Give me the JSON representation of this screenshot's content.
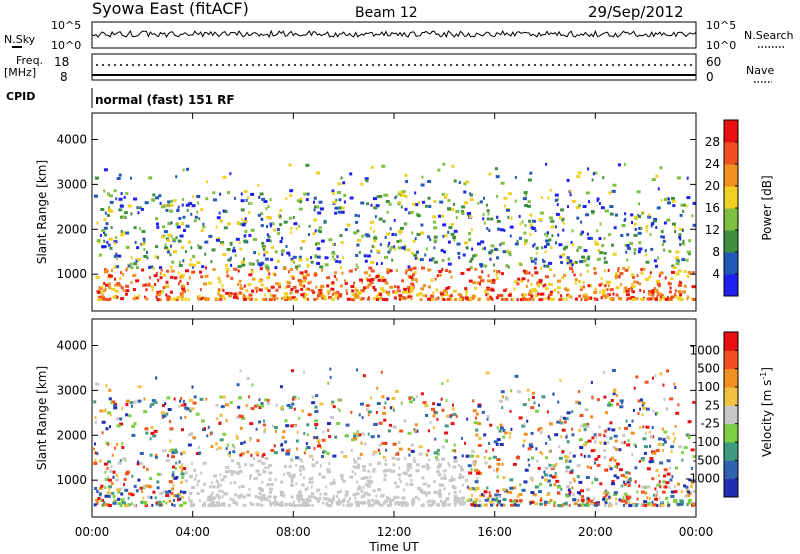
{
  "header": {
    "station": "Syowa East (fitACF)",
    "beam": "Beam 12",
    "date": "29/Sep/2012"
  },
  "top_panel": {
    "left_label": "N.Sky",
    "right_label": "N.Search",
    "ticks": [
      "10^5",
      "10^0"
    ],
    "right_ticks": [
      "10^5",
      "10^0"
    ]
  },
  "freq_panel": {
    "left_label_1": "Freq.",
    "left_label_2": "[MHz]",
    "right_label": "Nave",
    "left_ticks": [
      "18",
      "8"
    ],
    "right_ticks": [
      "60",
      "0"
    ]
  },
  "cpid_panel": {
    "label": "CPID",
    "text": "normal (fast) 151 RF"
  },
  "chart_data": [
    {
      "type": "heatmap",
      "ylabel": "Slant Range [km]",
      "ylim": [
        180,
        4590
      ],
      "y_ticks": [
        "1000",
        "2000",
        "3000",
        "4000"
      ],
      "colorbar": {
        "label": "Power [dB]",
        "ticks": [
          "4",
          "8",
          "12",
          "16",
          "20",
          "24",
          "28"
        ],
        "colors": [
          "#1f20f0",
          "#2358b8",
          "#3f8f3f",
          "#7fbf3f",
          "#f0d020",
          "#f09020",
          "#f05020",
          "#e81010"
        ]
      }
    },
    {
      "type": "heatmap",
      "ylabel": "Slant Range [km]",
      "ylim": [
        180,
        4590
      ],
      "y_ticks": [
        "1000",
        "2000",
        "3000",
        "4000"
      ],
      "colorbar": {
        "label": "Velocity [m s",
        "label_sup": "-1",
        "label_end": "]",
        "ticks": [
          "1000",
          "500",
          "100",
          "25",
          "-25",
          "-100",
          "-500",
          "-1000"
        ],
        "colors": [
          "#1f2fb0",
          "#2f62b0",
          "#3f9a80",
          "#7ad040",
          "#c8c8c8",
          "#f0c040",
          "#f09020",
          "#f05020",
          "#e81010"
        ]
      }
    }
  ],
  "x_axis": {
    "title": "Time UT",
    "ticks": [
      "00:00",
      "04:00",
      "08:00",
      "12:00",
      "16:00",
      "20:00",
      "00:00"
    ]
  }
}
